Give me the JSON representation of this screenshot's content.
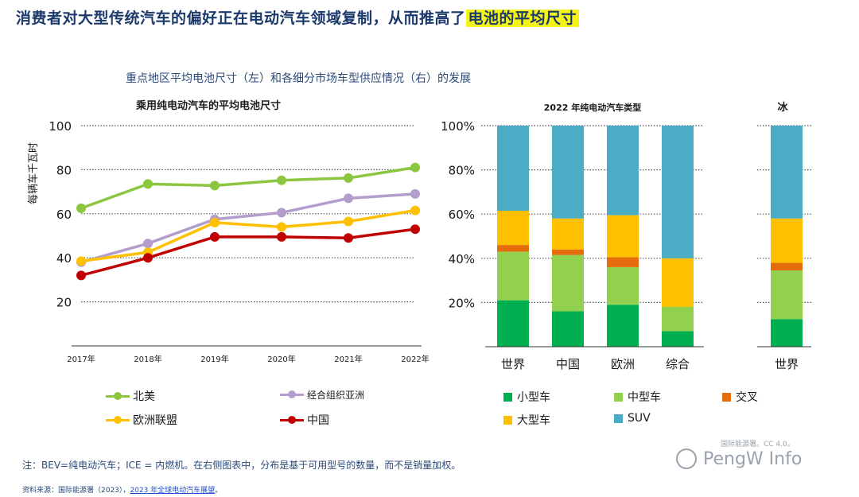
{
  "header": {
    "title_prefix": "消费者对大型传统汽车的偏好正在电动汽车领域复制，从而推高了",
    "title_highlight": "电池的平均尺寸",
    "subtitle": "重点地区平均电池尺寸（左）和各细分市场车型供应情况（右）的发展"
  },
  "colors": {
    "north_america": "#8cc63f",
    "asia": "#b39dcc",
    "eu": "#ffc000",
    "china": "#c00000",
    "small": "#00b050",
    "medium": "#92d050",
    "crossover": "#e46c0a",
    "large": "#ffc000",
    "suv": "#4bacc6",
    "title_blue": "#1b3a6b"
  },
  "chart_data": [
    {
      "type": "line",
      "title": "乘用纯电动汽车的平均电池尺寸",
      "ylabel": "每辆车千瓦时",
      "xlabel": "",
      "categories": [
        "2017年",
        "2018年",
        "2019年",
        "2020年",
        "2021年",
        "2022年"
      ],
      "ylim": [
        0,
        100
      ],
      "yticks": [
        20,
        40,
        60,
        80,
        100
      ],
      "series": [
        {
          "name": "北美",
          "color": "#8cc63f",
          "values": [
            62.5,
            73.5,
            72.8,
            75.2,
            76.2,
            81
          ]
        },
        {
          "name": "经合组织亚洲",
          "color": "#b39dcc",
          "values": [
            38,
            46.5,
            57.5,
            60.5,
            67,
            69
          ]
        },
        {
          "name": "欧洲联盟",
          "color": "#ffc000",
          "values": [
            38.5,
            42.5,
            56,
            54,
            56.5,
            61.5
          ]
        },
        {
          "name": "中国",
          "color": "#c00000",
          "values": [
            32,
            40,
            49.5,
            49.5,
            49,
            53
          ]
        }
      ]
    },
    {
      "type": "bar",
      "stacked": true,
      "title": "2022 年纯电动汽车类型",
      "categories": [
        "世界",
        "中国",
        "欧洲",
        "综合"
      ],
      "ylim": [
        0,
        100
      ],
      "ytick_labels": [
        "20%",
        "40%",
        "60%",
        "80%",
        "100%"
      ],
      "yticks": [
        20,
        40,
        60,
        80,
        100
      ],
      "series": [
        {
          "name": "小型车",
          "values": [
            21,
            16,
            19,
            7
          ]
        },
        {
          "name": "中型车",
          "values": [
            22,
            25.5,
            17,
            11
          ]
        },
        {
          "name": "交叉",
          "values": [
            3,
            2.5,
            4.5,
            0
          ]
        },
        {
          "name": "大型车",
          "values": [
            15.5,
            14,
            19,
            22
          ]
        },
        {
          "name": "SUV",
          "values": [
            38.5,
            42,
            40.5,
            60
          ]
        }
      ]
    },
    {
      "type": "bar",
      "stacked": true,
      "title": "冰",
      "categories": [
        "世界"
      ],
      "ylim": [
        0,
        100
      ],
      "series": [
        {
          "name": "小型车",
          "values": [
            12.5
          ]
        },
        {
          "name": "中型车",
          "values": [
            22
          ]
        },
        {
          "name": "交叉",
          "values": [
            3.5
          ]
        },
        {
          "name": "大型车",
          "values": [
            20
          ]
        },
        {
          "name": "SUV",
          "values": [
            42
          ]
        }
      ]
    }
  ],
  "legend_lines": [
    {
      "label": "北美",
      "color": "#8cc63f"
    },
    {
      "label": "经合组织亚洲",
      "color": "#b39dcc"
    },
    {
      "label": "欧洲联盟",
      "color": "#ffc000"
    },
    {
      "label": "中国",
      "color": "#c00000"
    }
  ],
  "legend_bars": [
    {
      "label": "小型车",
      "color": "#00b050"
    },
    {
      "label": "中型车",
      "color": "#92d050"
    },
    {
      "label": "交叉",
      "color": "#e46c0a"
    },
    {
      "label": "大型车",
      "color": "#ffc000"
    },
    {
      "label": "SUV",
      "color": "#4bacc6"
    }
  ],
  "footer": {
    "note": "注：BEV=纯电动汽车；ICE = 内燃机。在右侧图表中，分布是基于可用型号的数量，而不是销量加权。",
    "source_prefix": "资料来源：国际能源署（2023），",
    "source_link": "2023 年全球电动汽车展望",
    "source_suffix": "。"
  },
  "watermark": {
    "small": "国际能源署。CC 4.0。",
    "big": "PengW Info"
  }
}
